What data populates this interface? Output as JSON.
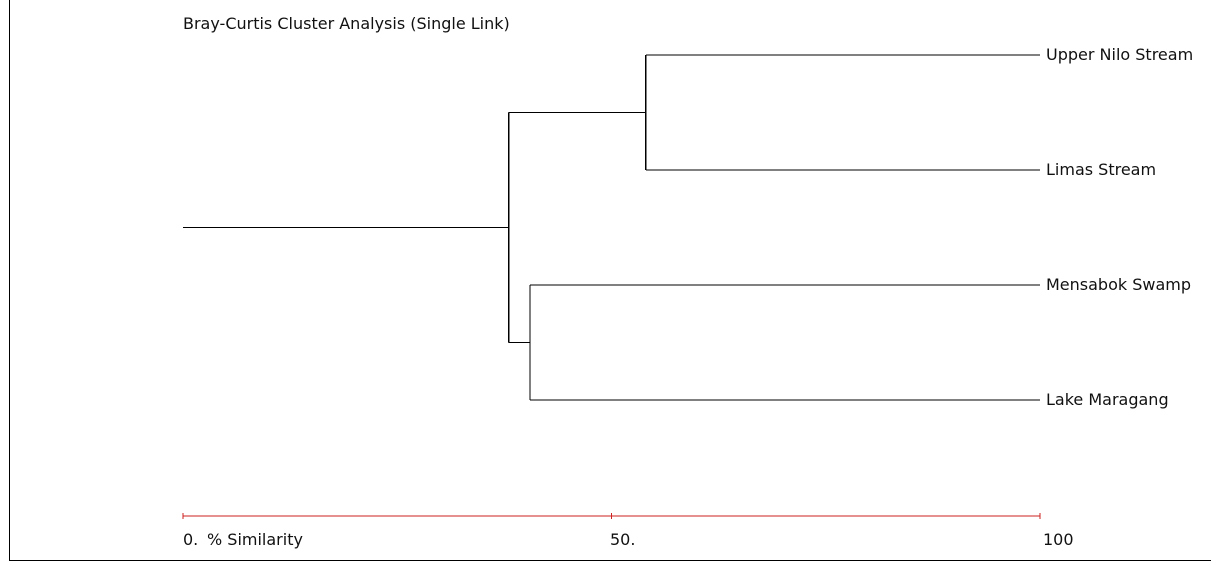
{
  "chart_data": {
    "type": "dendrogram",
    "title": "Bray-Curtis Cluster Analysis (Single Link)",
    "xlabel": "% Similarity",
    "xlim": [
      0,
      100
    ],
    "orientation": "horizontal",
    "ticks": [
      {
        "value": 0,
        "label": "0."
      },
      {
        "value": 50,
        "label": "50."
      },
      {
        "value": 100,
        "label": "100"
      }
    ],
    "leaves": [
      "Upper Nilo Stream",
      "Limas Stream",
      "Mensabok Swamp",
      "Lake Maragang"
    ],
    "merges": [
      {
        "id": "A",
        "members": [
          "Upper Nilo Stream",
          "Limas Stream"
        ],
        "similarity": 54
      },
      {
        "id": "B",
        "members": [
          "Mensabok Swamp",
          "Lake Maragang"
        ],
        "similarity": 40.5
      },
      {
        "id": "C",
        "members": [
          "A",
          "B"
        ],
        "similarity": 38
      }
    ]
  },
  "colors": {
    "axis": "#cc2222",
    "lines": "#000000"
  }
}
